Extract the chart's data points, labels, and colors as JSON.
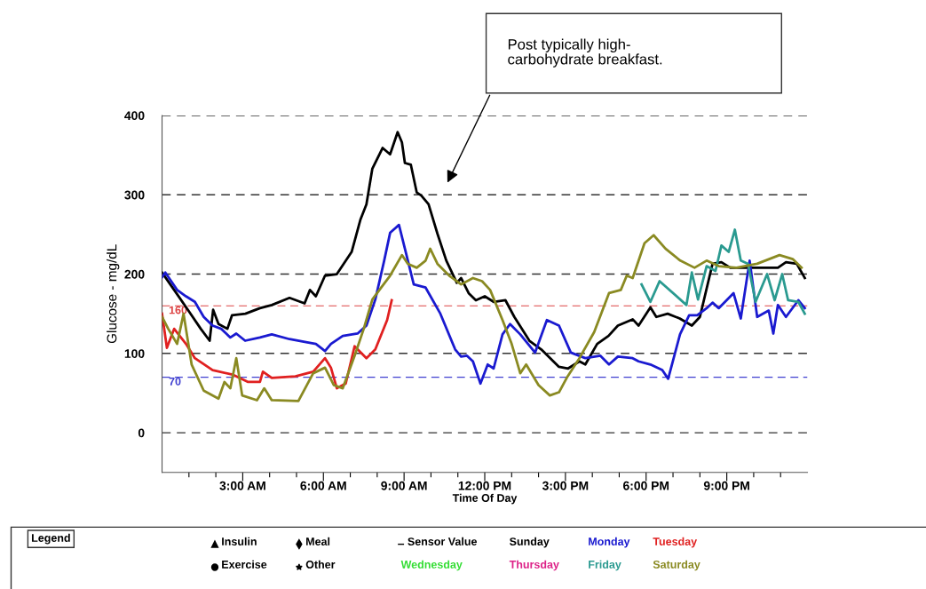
{
  "chart_data": {
    "type": "line",
    "xlabel": "Time Of Day",
    "ylabel": "Glucose - mg/dL",
    "xlim": [
      0,
      24
    ],
    "ylim": [
      -50,
      400
    ],
    "xticks": [
      {
        "value": 1,
        "label": null
      },
      {
        "value": 2,
        "label": null
      },
      {
        "value": 3,
        "label": "3:00 AM"
      },
      {
        "value": 4,
        "label": null
      },
      {
        "value": 5,
        "label": null
      },
      {
        "value": 6,
        "label": "6:00 AM"
      },
      {
        "value": 7,
        "label": null
      },
      {
        "value": 8,
        "label": null
      },
      {
        "value": 9,
        "label": "9:00 AM"
      },
      {
        "value": 10,
        "label": null
      },
      {
        "value": 11,
        "label": null
      },
      {
        "value": 12,
        "label": "12:00 PM"
      },
      {
        "value": 13,
        "label": null
      },
      {
        "value": 14,
        "label": null
      },
      {
        "value": 15,
        "label": "3:00 PM"
      },
      {
        "value": 16,
        "label": null
      },
      {
        "value": 17,
        "label": null
      },
      {
        "value": 18,
        "label": "6:00 PM"
      },
      {
        "value": 19,
        "label": null
      },
      {
        "value": 20,
        "label": null
      },
      {
        "value": 21,
        "label": "9:00 PM"
      },
      {
        "value": 22,
        "label": null
      },
      {
        "value": 23,
        "label": null
      }
    ],
    "yticks": [
      0,
      100,
      200,
      300,
      400
    ],
    "grid": "y",
    "legend": "bottom",
    "legend_title": "Legend",
    "marker": "none",
    "line_style": "solid",
    "ref_lines": [
      {
        "axis": "y",
        "value": 160,
        "label": "160",
        "color": "#dd4444",
        "line_style": "dashed"
      },
      {
        "axis": "y",
        "value": 70,
        "label": "70",
        "color": "#4040d0",
        "line_style": "dashed"
      }
    ],
    "annotations": [
      "Post typically high-carbohydrate breakfast.",
      "Insulin",
      "Exercise",
      "Meal",
      "Other",
      "Sensor Value"
    ],
    "series": [
      {
        "name": "Sunday",
        "color": "#000000",
        "x": [
          0,
          0.45,
          1.0,
          1.44,
          1.77,
          1.9,
          2.1,
          2.43,
          2.6,
          3.1,
          3.64,
          4.08,
          4.74,
          5.3,
          5.5,
          5.72,
          6.06,
          6.5,
          7.05,
          7.38,
          7.6,
          7.82,
          8.2,
          8.48,
          8.76,
          8.92,
          9.03,
          9.25,
          9.47,
          9.64,
          9.91,
          10.24,
          10.57,
          10.96,
          11.12,
          11.4,
          11.67,
          12.0,
          12.33,
          12.77,
          13.1,
          13.66,
          14.1,
          14.76,
          15.1,
          15.52,
          15.74,
          16.18,
          16.6,
          16.95,
          17.5,
          17.72,
          18.16,
          18.38,
          18.8,
          19.25,
          19.7,
          20.0,
          20.47,
          20.8,
          21.13,
          21.68,
          22.56,
          22.9,
          23.2,
          23.6,
          23.9
        ],
        "values": [
          202,
          180,
          153,
          131,
          116,
          155,
          137,
          131,
          148,
          150,
          157,
          161,
          170,
          163,
          180,
          172,
          198,
          200,
          228,
          269,
          288,
          333,
          359,
          351,
          379,
          366,
          340,
          338,
          303,
          299,
          288,
          251,
          217,
          189,
          195,
          176,
          167,
          172,
          165,
          167,
          146,
          116,
          105,
          83,
          81,
          90,
          86,
          112,
          122,
          135,
          143,
          135,
          158,
          146,
          150,
          144,
          135,
          146,
          213,
          215,
          208,
          208,
          208,
          208,
          215,
          213,
          195
        ]
      },
      {
        "name": "Monday",
        "color": "#1a1ad0",
        "x": [
          0,
          0.12,
          0.56,
          0.89,
          1.22,
          1.55,
          1.88,
          2.2,
          2.54,
          2.76,
          3.09,
          3.64,
          4.08,
          4.74,
          5.4,
          5.72,
          6.06,
          6.28,
          6.72,
          7.27,
          7.6,
          7.93,
          8.26,
          8.48,
          8.81,
          9.03,
          9.36,
          9.8,
          10.35,
          10.9,
          11.12,
          11.34,
          11.56,
          11.84,
          12.11,
          12.33,
          12.66,
          12.94,
          13.32,
          13.87,
          14.31,
          14.76,
          15.2,
          15.74,
          16.3,
          16.62,
          16.95,
          17.5,
          17.72,
          18.16,
          18.6,
          18.82,
          19.26,
          19.6,
          19.9,
          20.25,
          20.47,
          20.7,
          21.25,
          21.52,
          21.85,
          22.13,
          22.56,
          22.73,
          22.9,
          23.2,
          23.66,
          23.9
        ],
        "values": [
          196,
          202,
          180,
          172,
          165,
          146,
          135,
          131,
          120,
          125,
          116,
          120,
          124,
          118,
          114,
          112,
          103,
          112,
          122,
          125,
          135,
          168,
          217,
          252,
          262,
          232,
          187,
          183,
          150,
          105,
          96,
          97,
          90,
          62,
          86,
          81,
          124,
          137,
          124,
          101,
          142,
          135,
          101,
          94,
          97,
          86,
          96,
          94,
          90,
          86,
          79,
          68,
          124,
          148,
          148,
          157,
          164,
          157,
          176,
          144,
          217,
          146,
          154,
          125,
          161,
          146,
          167,
          157
        ]
      },
      {
        "name": "Tuesday",
        "color": "#e02020",
        "x": [
          0,
          0.18,
          0.45,
          0.89,
          1.22,
          1.88,
          2.65,
          3.2,
          3.64,
          3.75,
          4.08,
          4.96,
          5.62,
          6.06,
          6.28,
          6.5,
          6.83,
          7.16,
          7.6,
          7.93,
          8.37,
          8.54
        ],
        "values": [
          150,
          107,
          131,
          112,
          94,
          79,
          73,
          64,
          64,
          77,
          69,
          71,
          77,
          94,
          82,
          56,
          62,
          109,
          94,
          105,
          142,
          167
        ]
      },
      {
        "name": "Wednesday",
        "color": "#33dd33"
      },
      {
        "name": "Thursday",
        "color": "#dd2288"
      },
      {
        "name": "Friday",
        "color": "#2a9a90",
        "x": [
          17.83,
          18.16,
          18.5,
          19.5,
          19.7,
          19.93,
          20.25,
          20.58,
          20.8,
          21.07,
          21.3,
          21.52,
          21.79,
          22.07,
          22.5,
          22.78,
          23.06,
          23.28,
          23.66,
          23.9
        ],
        "values": [
          187,
          165,
          191,
          161,
          202,
          168,
          210,
          204,
          236,
          228,
          256,
          217,
          213,
          165,
          200,
          167,
          200,
          167,
          165,
          150
        ]
      },
      {
        "name": "Saturday",
        "color": "#8a8a22",
        "x": [
          0,
          0.23,
          0.56,
          0.8,
          1.1,
          1.55,
          2.1,
          2.32,
          2.54,
          2.76,
          2.98,
          3.53,
          3.8,
          4.08,
          5.07,
          5.62,
          6.06,
          6.39,
          6.72,
          7.16,
          7.5,
          7.82,
          8.15,
          8.48,
          8.92,
          9.14,
          9.47,
          9.8,
          9.97,
          10.24,
          10.68,
          11.12,
          11.56,
          11.9,
          12.2,
          12.66,
          13.0,
          13.32,
          13.54,
          14.0,
          14.42,
          14.76,
          15.08,
          15.52,
          16.07,
          16.62,
          17.06,
          17.28,
          17.5,
          17.94,
          18.28,
          18.72,
          19.27,
          19.8,
          20.25,
          20.7,
          21.36,
          22.13,
          22.96,
          23.45,
          23.78
        ],
        "values": [
          146,
          131,
          112,
          150,
          86,
          53,
          43,
          64,
          56,
          94,
          47,
          41,
          56,
          41,
          40,
          75,
          82,
          60,
          56,
          97,
          131,
          168,
          183,
          198,
          224,
          213,
          208,
          217,
          232,
          213,
          198,
          187,
          195,
          191,
          180,
          142,
          112,
          75,
          86,
          60,
          47,
          51,
          71,
          94,
          127,
          176,
          180,
          198,
          195,
          239,
          249,
          232,
          217,
          208,
          217,
          210,
          208,
          213,
          224,
          219,
          208
        ]
      }
    ]
  }
}
